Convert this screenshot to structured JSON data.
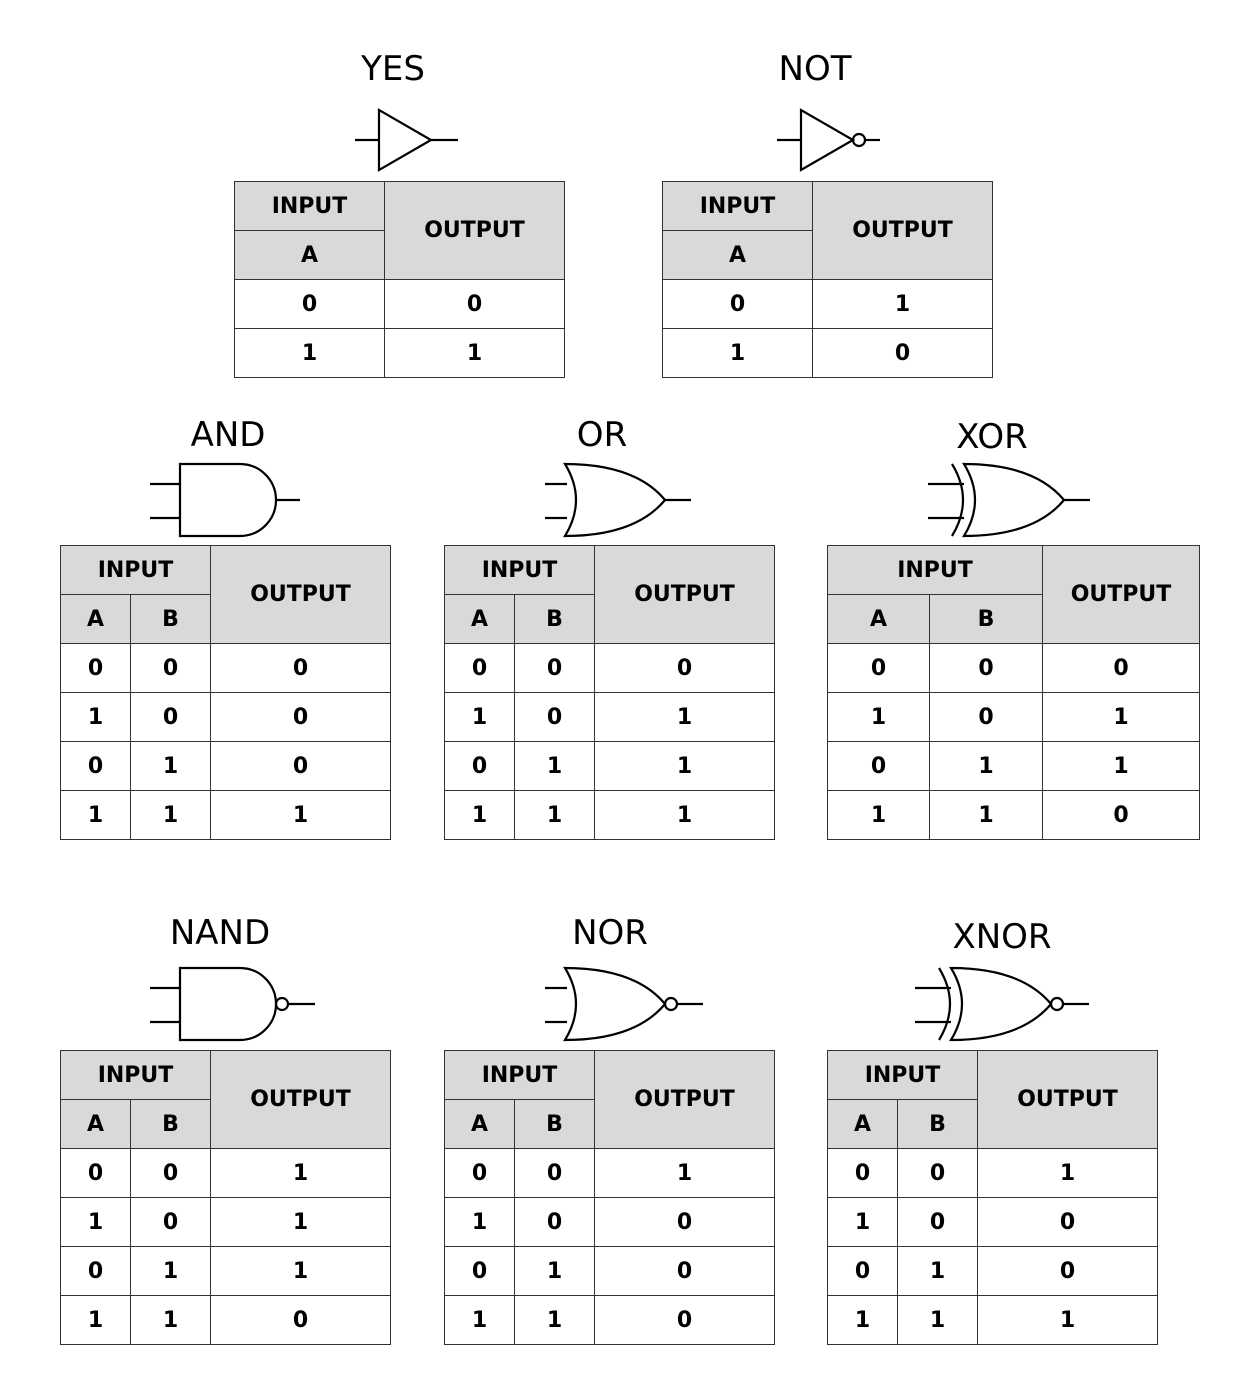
{
  "labels": {
    "input": "INPUT",
    "output": "OUTPUT"
  },
  "gates": [
    {
      "name": "YES",
      "inputs": [
        "A"
      ],
      "rows": [
        [
          "0",
          "0"
        ],
        [
          "1",
          "1"
        ]
      ]
    },
    {
      "name": "NOT",
      "inputs": [
        "A"
      ],
      "rows": [
        [
          "0",
          "1"
        ],
        [
          "1",
          "0"
        ]
      ]
    },
    {
      "name": "AND",
      "inputs": [
        "A",
        "B"
      ],
      "rows": [
        [
          "0",
          "0",
          "0"
        ],
        [
          "1",
          "0",
          "0"
        ],
        [
          "0",
          "1",
          "0"
        ],
        [
          "1",
          "1",
          "1"
        ]
      ]
    },
    {
      "name": "OR",
      "inputs": [
        "A",
        "B"
      ],
      "rows": [
        [
          "0",
          "0",
          "0"
        ],
        [
          "1",
          "0",
          "1"
        ],
        [
          "0",
          "1",
          "1"
        ],
        [
          "1",
          "1",
          "1"
        ]
      ]
    },
    {
      "name": "XOR",
      "inputs": [
        "A",
        "B"
      ],
      "rows": [
        [
          "0",
          "0",
          "0"
        ],
        [
          "1",
          "0",
          "1"
        ],
        [
          "0",
          "1",
          "1"
        ],
        [
          "1",
          "1",
          "0"
        ]
      ]
    },
    {
      "name": "NAND",
      "inputs": [
        "A",
        "B"
      ],
      "rows": [
        [
          "0",
          "0",
          "1"
        ],
        [
          "1",
          "0",
          "1"
        ],
        [
          "0",
          "1",
          "1"
        ],
        [
          "1",
          "1",
          "0"
        ]
      ]
    },
    {
      "name": "NOR",
      "inputs": [
        "A",
        "B"
      ],
      "rows": [
        [
          "0",
          "0",
          "1"
        ],
        [
          "1",
          "0",
          "0"
        ],
        [
          "0",
          "1",
          "0"
        ],
        [
          "1",
          "1",
          "0"
        ]
      ]
    },
    {
      "name": "XNOR",
      "inputs": [
        "A",
        "B"
      ],
      "rows": [
        [
          "0",
          "0",
          "1"
        ],
        [
          "1",
          "0",
          "0"
        ],
        [
          "0",
          "1",
          "0"
        ],
        [
          "1",
          "1",
          "1"
        ]
      ]
    }
  ]
}
